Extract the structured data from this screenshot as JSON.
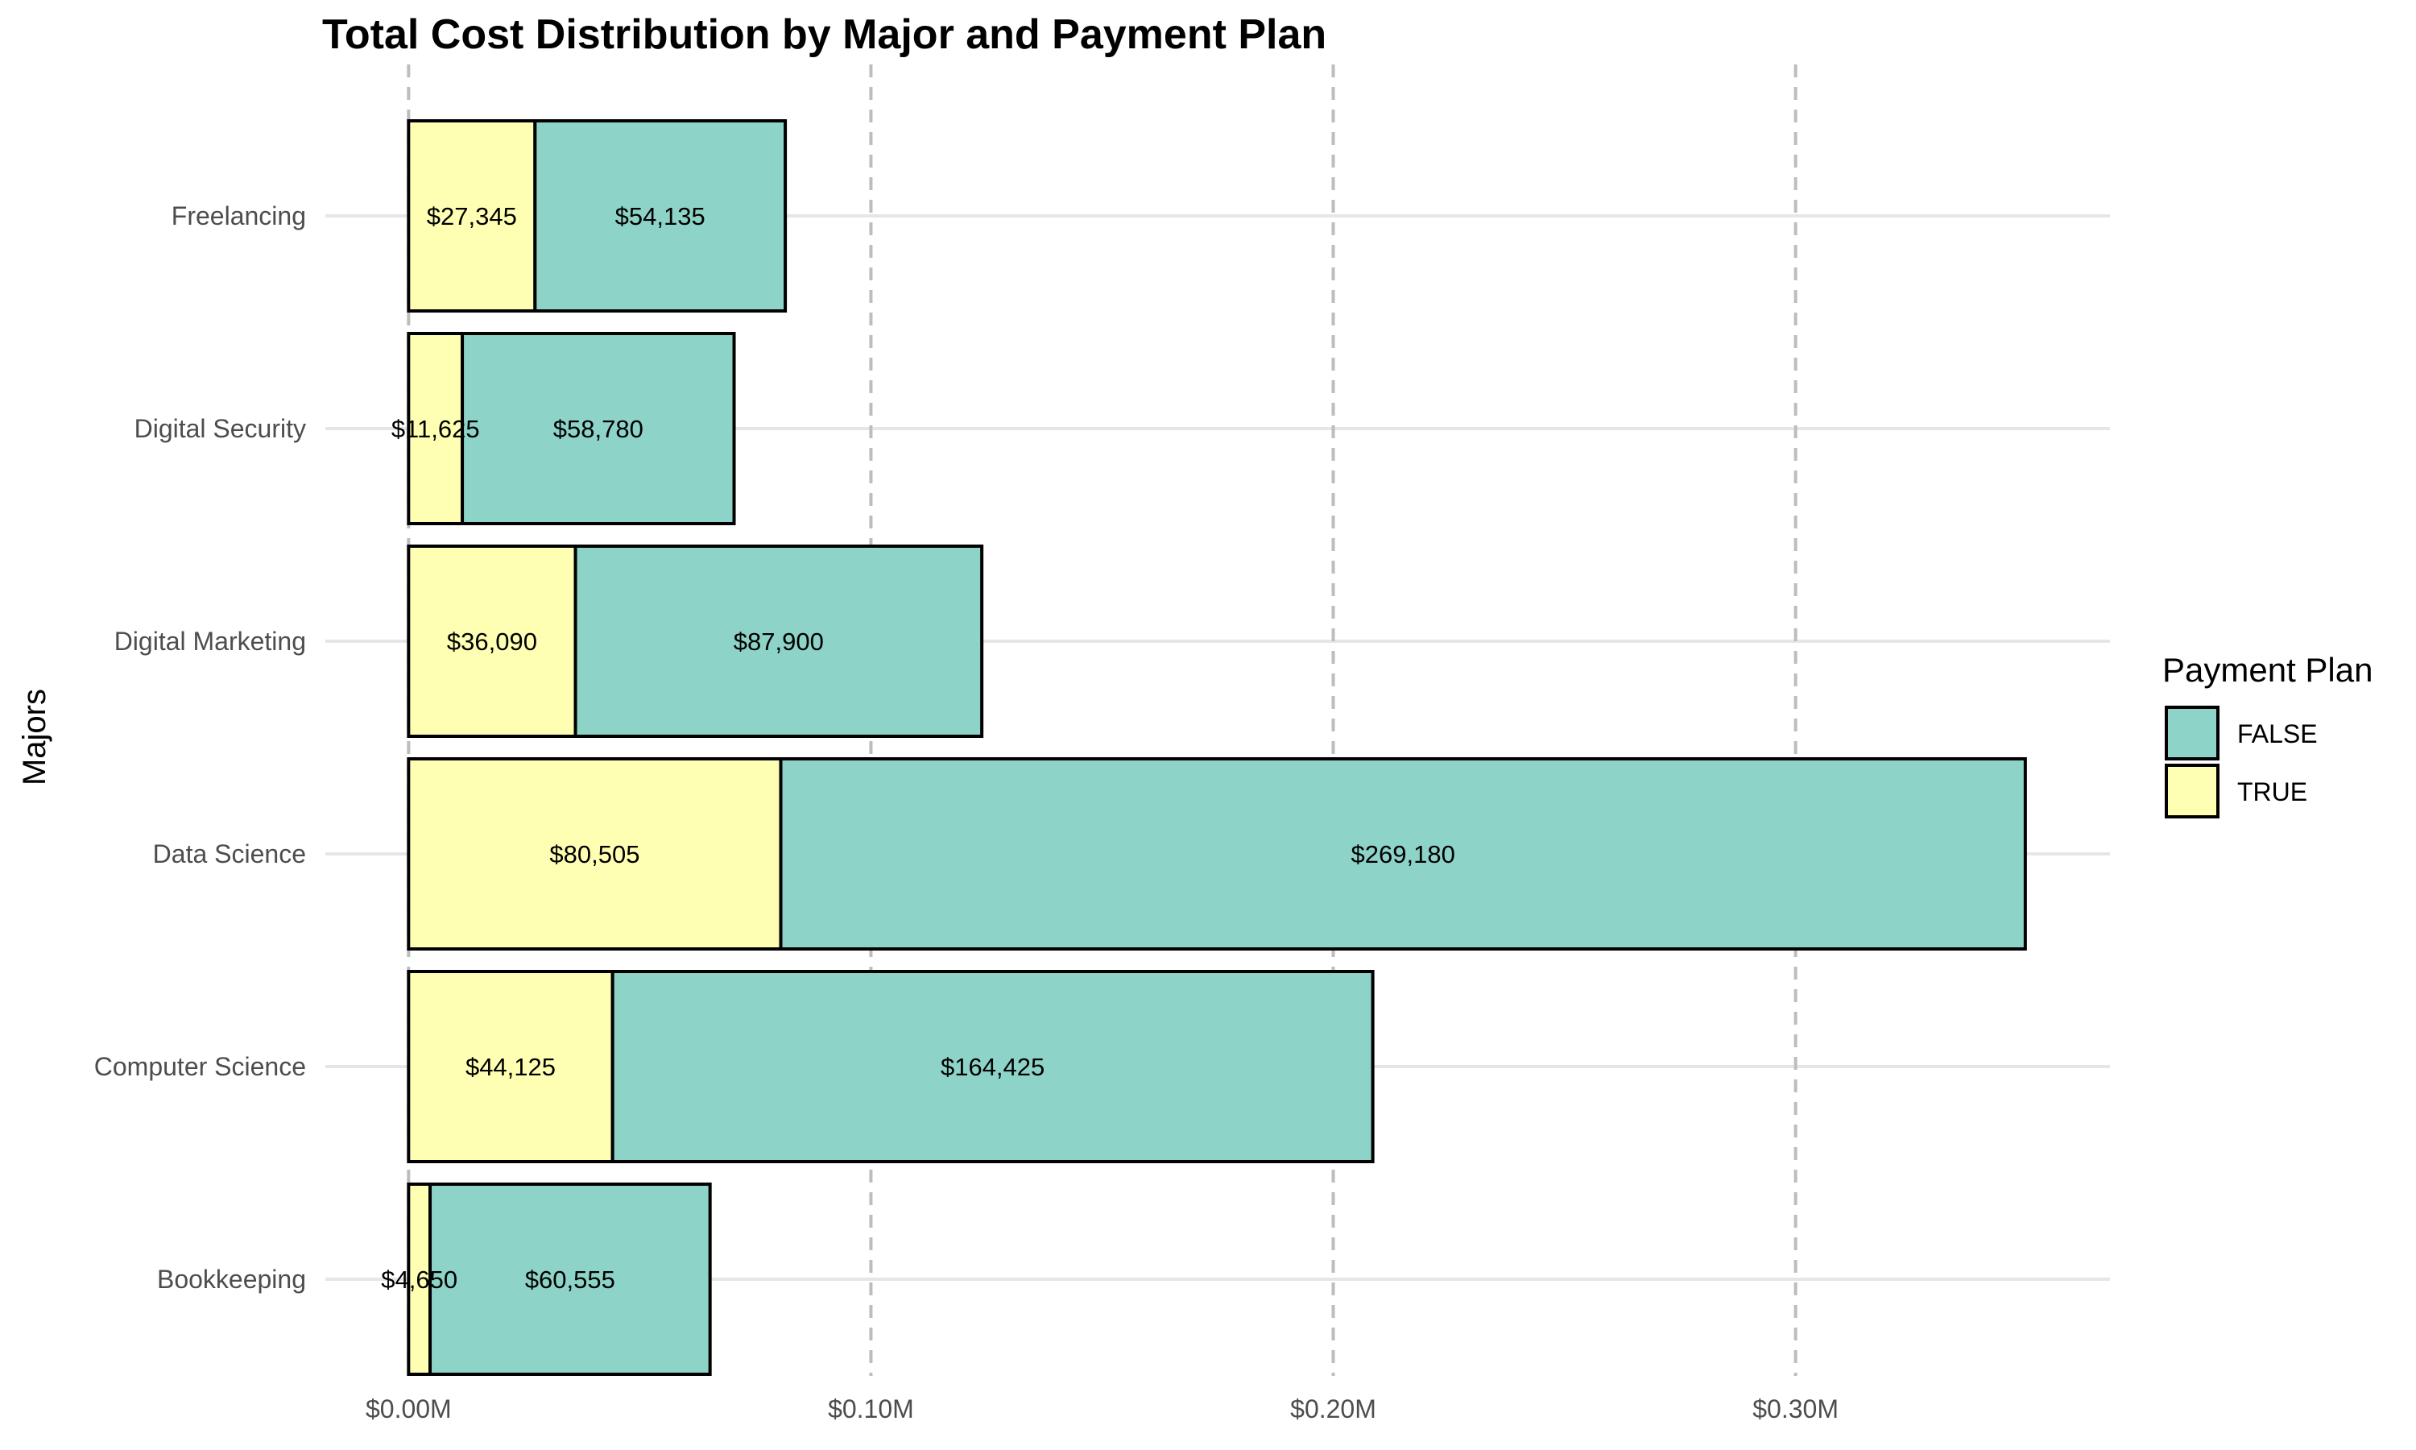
{
  "chart_data": {
    "type": "bar",
    "orientation": "horizontal",
    "stacked": true,
    "title": "Total Cost Distribution by Major and Payment Plan",
    "ylabel": "Majors",
    "xlabel": "",
    "categories": [
      "Bookkeeping",
      "Computer Science",
      "Data Science",
      "Digital Marketing",
      "Digital Security",
      "Freelancing"
    ],
    "series": [
      {
        "name": "TRUE",
        "color": "#ffffb3",
        "values": [
          4650,
          44125,
          80505,
          36090,
          11625,
          27345
        ]
      },
      {
        "name": "FALSE",
        "color": "#8dd3c7",
        "values": [
          60555,
          164425,
          269180,
          87900,
          58780,
          54135
        ]
      }
    ],
    "data_labels": {
      "TRUE": [
        "$4,650",
        "$44,125",
        "$80,505",
        "$36,090",
        "$11,625",
        "$27,345"
      ],
      "FALSE": [
        "$60,555",
        "$164,425",
        "$269,180",
        "$87,900",
        "$58,780",
        "$54,135"
      ]
    },
    "xlim": [
      -18000,
      368000
    ],
    "xticks": [
      0,
      100000,
      200000,
      300000
    ],
    "xtick_labels": [
      "$0.00M",
      "$0.10M",
      "$0.20M",
      "$0.30M"
    ],
    "grid": {
      "vertical": "dashed",
      "horizontal": "solid"
    },
    "legend": {
      "title": "Payment Plan",
      "position": "right",
      "entries": [
        {
          "label": "FALSE",
          "color": "#8dd3c7"
        },
        {
          "label": "TRUE",
          "color": "#ffffb3"
        }
      ]
    }
  }
}
